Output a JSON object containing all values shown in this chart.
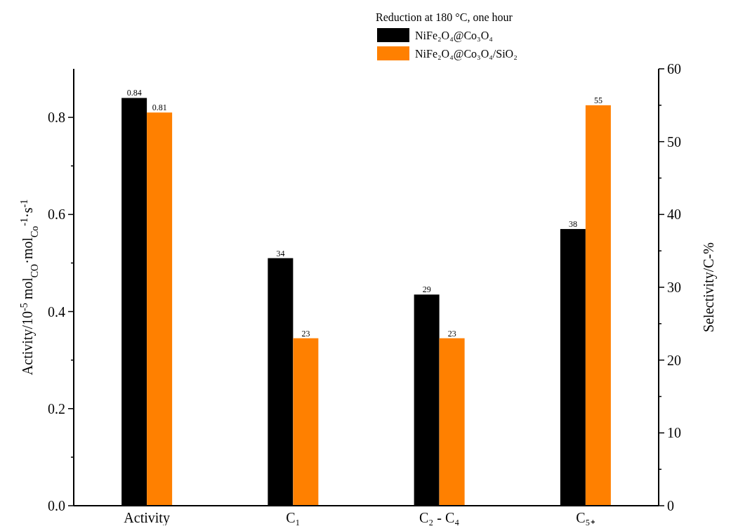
{
  "chart_data": {
    "type": "bar",
    "ylabel": "Activity/10$^{-5}$ mol$_{CO}$·mol$_{Co}$$^{-1}$·s$^{-1}$",
    "y2label": "Selectivity/C-%",
    "legend_title": "Reduction at 180 °C, one hour",
    "legend": "top right",
    "data_labels": true,
    "categories": [
      "Activity",
      "C₁",
      "C₂ - C₄",
      "C₅₊"
    ],
    "series": [
      {
        "name": "NiFe₂O₄@Co₃O₄",
        "color": "#000000",
        "values": [
          0.84,
          null,
          null,
          null
        ]
      },
      {
        "name": "NiFe₂O₄@Co₃O₄/SiO₂",
        "color": "#ff8000",
        "values": [
          0.81,
          null,
          null,
          null
        ]
      },
      {
        "color": "#000000",
        "axis": "y2",
        "values": [
          null,
          34,
          29,
          38
        ]
      },
      {
        "color": "#ff8000",
        "axis": "y2",
        "values": [
          null,
          23,
          23,
          55
        ]
      }
    ],
    "ylim": [
      0,
      0.9
    ],
    "yticks": [
      {
        "value": 0,
        "label": "0.0"
      },
      {
        "value": 0.1,
        "label": null
      },
      {
        "value": 0.2,
        "label": "0.2"
      },
      {
        "value": 0.3,
        "label": null
      },
      {
        "value": 0.4,
        "label": "0.4"
      },
      {
        "value": 0.5,
        "label": null
      },
      {
        "value": 0.6,
        "label": "0.6"
      },
      {
        "value": 0.7,
        "label": null
      },
      {
        "value": 0.8,
        "label": "0.8"
      }
    ],
    "y2lim": [
      0,
      60
    ],
    "y2ticks": [
      0,
      {
        "value": 5,
        "label": null
      },
      10,
      {
        "value": 15,
        "label": null
      },
      20,
      {
        "value": 25,
        "label": null
      },
      30,
      {
        "value": 35,
        "label": null
      },
      40,
      {
        "value": 45,
        "label": null
      },
      50,
      {
        "value": 55,
        "label": null
      },
      60
    ]
  }
}
